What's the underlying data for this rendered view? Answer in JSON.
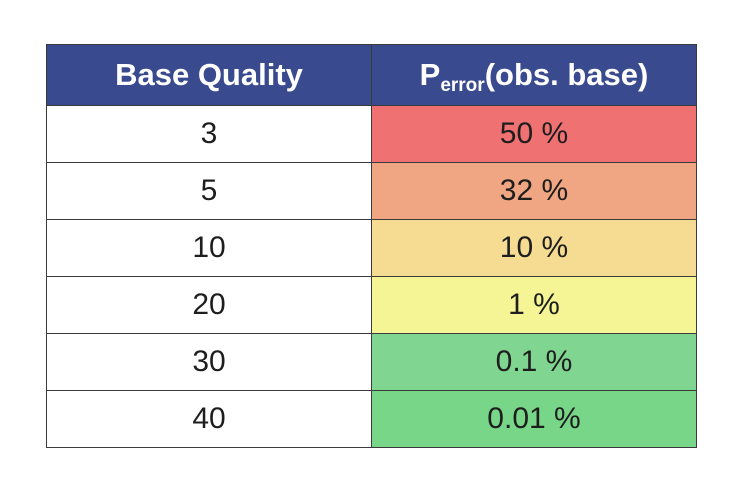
{
  "chart_data": {
    "type": "table",
    "columns": [
      {
        "label": "Base Quality"
      },
      {
        "label_main": "P",
        "label_sub": "error",
        "label_rest": "(obs. base)"
      }
    ],
    "rows": [
      {
        "quality": "3",
        "error": "50 %",
        "color": "#f07172"
      },
      {
        "quality": "5",
        "error": "32 %",
        "color": "#f0a683"
      },
      {
        "quality": "10",
        "error": "10 %",
        "color": "#f6dc92"
      },
      {
        "quality": "20",
        "error": "1 %",
        "color": "#f5f596"
      },
      {
        "quality": "30",
        "error": "0.1 %",
        "color": "#80d690"
      },
      {
        "quality": "40",
        "error": "0.01 %",
        "color": "#78d688"
      }
    ],
    "header_color": "#3a4a8e"
  }
}
